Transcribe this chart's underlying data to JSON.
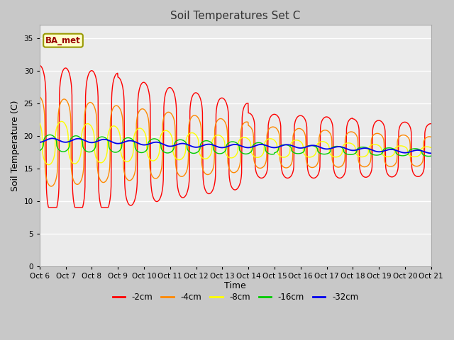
{
  "title": "Soil Temperatures Set C",
  "xlabel": "Time",
  "ylabel": "Soil Temperature (C)",
  "ylim": [
    0,
    37
  ],
  "yticks": [
    0,
    5,
    10,
    15,
    20,
    25,
    30,
    35
  ],
  "legend_label": "BA_met",
  "series_labels": [
    "-2cm",
    "-4cm",
    "-8cm",
    "-16cm",
    "-32cm"
  ],
  "series_colors": [
    "#ff0000",
    "#ff8800",
    "#ffff00",
    "#00cc00",
    "#0000ee"
  ],
  "line_width": 1.0,
  "x_labels": [
    "Oct 6",
    "Oct 7",
    "Oct 8",
    "Oct 9",
    "Oct 10",
    "Oct 11",
    "Oct 12",
    "Oct 13",
    "Oct 14",
    "Oct 15",
    "Oct 16",
    "Oct 17",
    "Oct 18",
    "Oct 19",
    "Oct 20",
    "Oct 21"
  ],
  "figsize": [
    6.4,
    4.8
  ],
  "dpi": 100
}
